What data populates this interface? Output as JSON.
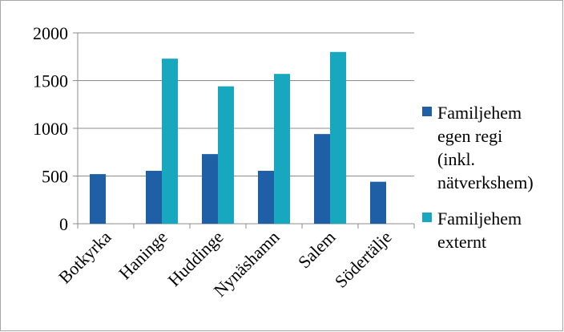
{
  "chart_data": {
    "type": "bar",
    "title": "",
    "xlabel": "",
    "ylabel": "",
    "categories": [
      "Botkyrka",
      "Haninge",
      "Huddinge",
      "Nynäshamn",
      "Salem",
      "Södertälje"
    ],
    "series": [
      {
        "name_lines": [
          "Familjehem",
          "egen regi",
          "(inkl.",
          "nätverkshem)"
        ],
        "color": "#1f5fa6",
        "values": [
          520,
          555,
          730,
          555,
          940,
          440
        ]
      },
      {
        "name_lines": [
          "Familjehem",
          "externt"
        ],
        "color": "#17a8c0",
        "values": [
          null,
          1730,
          1440,
          1570,
          1800,
          null
        ]
      }
    ],
    "ylim": [
      0,
      2000
    ],
    "yticks": [
      0,
      500,
      1000,
      1500,
      2000
    ],
    "grid": true,
    "legend_position": "right"
  }
}
